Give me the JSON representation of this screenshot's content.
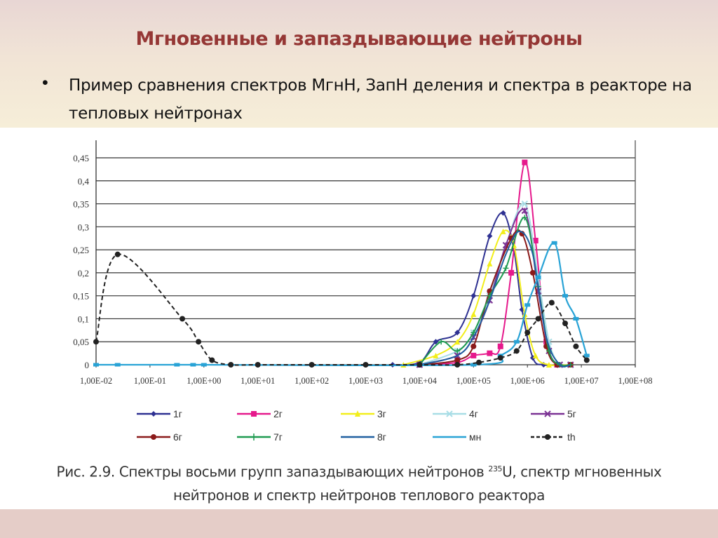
{
  "slide": {
    "title": "Мгновенные и запаздывающие нейтроны",
    "bullet": "Пример сравнения спектров МгнН, ЗапН деления и спектра в реакторе на тепловых нейтронах",
    "caption_line1_pre": "Рис. 2.9. Спектры восьми групп запаздывающих нейтронов ",
    "caption_sup": "235",
    "caption_line1_post": "U, спектр мгновенных",
    "caption_line2": "нейтронов и спектр нейтронов теплового реактора",
    "colors": {
      "title": "#953735",
      "band_top": "#e8d6d4",
      "band_bottom": "#e5cdc8"
    }
  },
  "chart_data": {
    "type": "line",
    "title": "",
    "xlabel": "",
    "ylabel": "",
    "xscale": "log",
    "xlim": [
      "1,00E-02",
      "1,00E+08"
    ],
    "ylim": [
      0,
      0.45
    ],
    "grid": "horizontal",
    "legend_position": "bottom",
    "x_tick_labels": [
      "1,00E-02",
      "1,00E-01",
      "1,00E+00",
      "1,00E+01",
      "1,00E+02",
      "1,00E+03",
      "1,00E+04",
      "1,00E+05",
      "1,00E+06",
      "1,00E+07",
      "1,00E+08"
    ],
    "y_tick_labels": [
      "0",
      "0,05",
      "0,1",
      "0,15",
      "0,2",
      "0,25",
      "0,3",
      "0,35",
      "0,4",
      "0,45"
    ],
    "series": [
      {
        "name": "1г",
        "color": "#2e3192",
        "marker": "diamond",
        "dash": false,
        "points": [
          [
            3.5,
            0
          ],
          [
            4.0,
            0.005
          ],
          [
            4.3,
            0.05
          ],
          [
            4.7,
            0.07
          ],
          [
            5.0,
            0.15
          ],
          [
            5.3,
            0.28
          ],
          [
            5.55,
            0.33
          ],
          [
            5.75,
            0.25
          ],
          [
            5.9,
            0.12
          ],
          [
            6.1,
            0.015
          ],
          [
            6.3,
            0
          ],
          [
            6.6,
            0
          ]
        ]
      },
      {
        "name": "2г",
        "color": "#e6198c",
        "marker": "square",
        "dash": false,
        "points": [
          [
            4.0,
            0
          ],
          [
            4.7,
            0.005
          ],
          [
            5.0,
            0.02
          ],
          [
            5.3,
            0.025
          ],
          [
            5.5,
            0.04
          ],
          [
            5.7,
            0.2
          ],
          [
            5.95,
            0.44
          ],
          [
            6.15,
            0.27
          ],
          [
            6.35,
            0.05
          ],
          [
            6.55,
            0
          ],
          [
            6.8,
            0
          ]
        ]
      },
      {
        "name": "3г",
        "color": "#f2ee1a",
        "marker": "triangle",
        "dash": false,
        "points": [
          [
            3.7,
            0
          ],
          [
            4.3,
            0.02
          ],
          [
            4.7,
            0.05
          ],
          [
            5.0,
            0.11
          ],
          [
            5.3,
            0.22
          ],
          [
            5.55,
            0.29
          ],
          [
            5.75,
            0.26
          ],
          [
            5.95,
            0.11
          ],
          [
            6.15,
            0.02
          ],
          [
            6.4,
            0
          ],
          [
            6.8,
            0
          ]
        ]
      },
      {
        "name": "4г",
        "color": "#a8dde6",
        "marker": "x",
        "dash": false,
        "points": [
          [
            4.0,
            0
          ],
          [
            4.7,
            0.03
          ],
          [
            5.0,
            0.07
          ],
          [
            5.3,
            0.15
          ],
          [
            5.6,
            0.26
          ],
          [
            5.95,
            0.35
          ],
          [
            6.2,
            0.19
          ],
          [
            6.4,
            0.05
          ],
          [
            6.6,
            0
          ],
          [
            6.8,
            0
          ]
        ]
      },
      {
        "name": "5г",
        "color": "#7b3294",
        "marker": "star",
        "dash": false,
        "points": [
          [
            4.0,
            0
          ],
          [
            4.7,
            0.02
          ],
          [
            5.0,
            0.06
          ],
          [
            5.3,
            0.14
          ],
          [
            5.6,
            0.26
          ],
          [
            5.95,
            0.335
          ],
          [
            6.2,
            0.16
          ],
          [
            6.4,
            0.03
          ],
          [
            6.6,
            0
          ],
          [
            6.8,
            0
          ]
        ]
      },
      {
        "name": "6г",
        "color": "#8b1a1a",
        "marker": "circle",
        "dash": false,
        "points": [
          [
            4.0,
            0
          ],
          [
            4.7,
            0.01
          ],
          [
            5.0,
            0.04
          ],
          [
            5.3,
            0.16
          ],
          [
            5.7,
            0.275
          ],
          [
            5.9,
            0.285
          ],
          [
            6.1,
            0.2
          ],
          [
            6.35,
            0.04
          ],
          [
            6.55,
            0
          ],
          [
            6.8,
            0
          ]
        ]
      },
      {
        "name": "7г",
        "color": "#1e9a50",
        "marker": "plus",
        "dash": false,
        "points": [
          [
            4.0,
            0
          ],
          [
            4.4,
            0.05
          ],
          [
            4.7,
            0.03
          ],
          [
            5.0,
            0.07
          ],
          [
            5.3,
            0.15
          ],
          [
            5.6,
            0.21
          ],
          [
            5.95,
            0.32
          ],
          [
            6.2,
            0.17
          ],
          [
            6.4,
            0.03
          ],
          [
            6.6,
            0
          ],
          [
            6.8,
            0
          ]
        ]
      },
      {
        "name": "8г",
        "color": "#1f5fa0",
        "marker": "none",
        "dash": false,
        "points": [
          [
            4.0,
            0
          ],
          [
            4.7,
            0.02
          ],
          [
            5.0,
            0.06
          ],
          [
            5.3,
            0.14
          ],
          [
            5.6,
            0.24
          ],
          [
            5.85,
            0.29
          ],
          [
            6.1,
            0.24
          ],
          [
            6.35,
            0.06
          ],
          [
            6.6,
            0
          ],
          [
            6.8,
            0
          ]
        ]
      },
      {
        "name": "мн",
        "color": "#29a3d6",
        "marker": "dash",
        "dash": false,
        "points": [
          [
            -2,
            0
          ],
          [
            -1.6,
            0
          ],
          [
            -0.5,
            0
          ],
          [
            -0.2,
            0
          ],
          [
            0.0,
            0
          ],
          [
            5.0,
            0
          ],
          [
            5.5,
            0.02
          ],
          [
            5.8,
            0.05
          ],
          [
            6.0,
            0.13
          ],
          [
            6.2,
            0.19
          ],
          [
            6.5,
            0.265
          ],
          [
            6.7,
            0.15
          ],
          [
            6.9,
            0.1
          ],
          [
            7.1,
            0.02
          ]
        ]
      },
      {
        "name": "th",
        "color": "#222222",
        "marker": "circle",
        "dash": true,
        "points": [
          [
            -2,
            0.05
          ],
          [
            -1.6,
            0.24
          ],
          [
            -0.4,
            0.1
          ],
          [
            -0.1,
            0.05
          ],
          [
            0.15,
            0.01
          ],
          [
            0.5,
            0
          ],
          [
            1,
            0
          ],
          [
            2,
            0
          ],
          [
            3,
            0
          ],
          [
            4,
            0
          ],
          [
            4.7,
            0
          ],
          [
            5.1,
            0.005
          ],
          [
            5.5,
            0.015
          ],
          [
            5.8,
            0.03
          ],
          [
            6.0,
            0.07
          ],
          [
            6.2,
            0.1
          ],
          [
            6.45,
            0.135
          ],
          [
            6.7,
            0.09
          ],
          [
            6.9,
            0.04
          ],
          [
            7.1,
            0.01
          ]
        ]
      }
    ]
  }
}
